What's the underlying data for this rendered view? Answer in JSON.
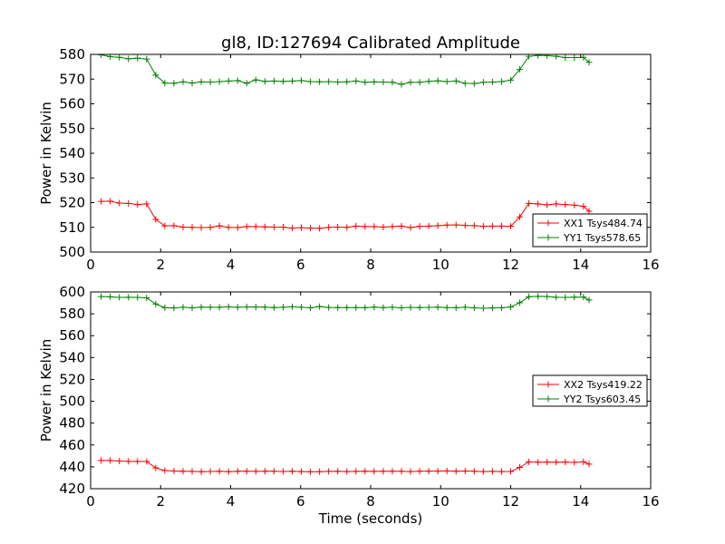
{
  "figure_title": "gl8, ID:127694 Calibrated Amplitude",
  "x_axis_label": "Time (seconds)",
  "colors": {
    "red": "#ff0000",
    "green": "#008000"
  },
  "chart_data": [
    {
      "type": "line",
      "title": "gl8, ID:127694 Calibrated Amplitude",
      "xlabel": "",
      "ylabel": "Power in Kelvin",
      "xlim": [
        0,
        16
      ],
      "ylim": [
        500,
        580
      ],
      "xticks": [
        0,
        2,
        4,
        6,
        8,
        10,
        12,
        14,
        16
      ],
      "yticks": [
        500,
        510,
        520,
        530,
        540,
        550,
        560,
        570,
        580
      ],
      "grid": false,
      "legend_position": "lower-right",
      "x": [
        0.3,
        0.56,
        0.82,
        1.08,
        1.34,
        1.6,
        1.86,
        2.12,
        2.38,
        2.64,
        2.9,
        3.16,
        3.42,
        3.68,
        3.94,
        4.2,
        4.46,
        4.72,
        4.98,
        5.24,
        5.5,
        5.76,
        6.02,
        6.28,
        6.54,
        6.8,
        7.06,
        7.32,
        7.58,
        7.84,
        8.1,
        8.36,
        8.62,
        8.88,
        9.14,
        9.4,
        9.66,
        9.92,
        10.18,
        10.44,
        10.7,
        10.96,
        11.22,
        11.48,
        11.74,
        12.0,
        12.26,
        12.52,
        12.78,
        13.04,
        13.3,
        13.56,
        13.82,
        14.08,
        14.24
      ],
      "series": [
        {
          "name": "XX1 Tsys484.74",
          "color": "#ff0000",
          "values": [
            520.5,
            520.6,
            519.8,
            519.7,
            519.2,
            519.5,
            513.2,
            510.6,
            510.7,
            510.1,
            510.0,
            509.9,
            510.0,
            510.6,
            510.0,
            509.9,
            510.3,
            510.3,
            510.2,
            510.1,
            510.1,
            509.7,
            509.9,
            509.7,
            509.6,
            510.0,
            510.1,
            510.0,
            510.5,
            510.3,
            510.3,
            510.1,
            510.3,
            510.5,
            509.9,
            510.4,
            510.5,
            510.7,
            510.9,
            511.0,
            510.8,
            510.7,
            510.4,
            510.5,
            510.5,
            510.4,
            514.2,
            519.7,
            519.5,
            519.1,
            519.5,
            519.2,
            519.0,
            518.5,
            516.5
          ]
        },
        {
          "name": "YY1 Tsys578.65",
          "color": "#008000",
          "values": [
            579.8,
            579.1,
            578.8,
            578.2,
            578.5,
            578.1,
            571.6,
            568.4,
            568.3,
            568.9,
            568.4,
            568.9,
            568.8,
            569.0,
            569.2,
            569.4,
            568.3,
            569.7,
            569.1,
            569.2,
            569.1,
            569.2,
            569.4,
            569.0,
            568.9,
            569.0,
            568.8,
            568.9,
            569.2,
            568.7,
            568.9,
            568.8,
            568.7,
            567.9,
            568.7,
            568.7,
            569.1,
            569.3,
            569.0,
            569.2,
            568.3,
            568.2,
            568.7,
            568.8,
            569.0,
            569.6,
            573.9,
            579.2,
            579.6,
            579.5,
            579.2,
            578.7,
            578.7,
            578.8,
            576.8
          ]
        }
      ]
    },
    {
      "type": "line",
      "title": "",
      "xlabel": "Time (seconds)",
      "ylabel": "Power in Kelvin",
      "xlim": [
        0,
        16
      ],
      "ylim": [
        420,
        600
      ],
      "xticks": [
        0,
        2,
        4,
        6,
        8,
        10,
        12,
        14,
        16
      ],
      "yticks": [
        420,
        440,
        460,
        480,
        500,
        520,
        540,
        560,
        580,
        600
      ],
      "grid": false,
      "legend_position": "center-right",
      "x": [
        0.3,
        0.56,
        0.82,
        1.08,
        1.34,
        1.6,
        1.86,
        2.12,
        2.38,
        2.64,
        2.9,
        3.16,
        3.42,
        3.68,
        3.94,
        4.2,
        4.46,
        4.72,
        4.98,
        5.24,
        5.5,
        5.76,
        6.02,
        6.28,
        6.54,
        6.8,
        7.06,
        7.32,
        7.58,
        7.84,
        8.1,
        8.36,
        8.62,
        8.88,
        9.14,
        9.4,
        9.66,
        9.92,
        10.18,
        10.44,
        10.7,
        10.96,
        11.22,
        11.48,
        11.74,
        12.0,
        12.26,
        12.52,
        12.78,
        13.04,
        13.3,
        13.56,
        13.82,
        14.08,
        14.24
      ],
      "series": [
        {
          "name": "XX2 Tsys419.22",
          "color": "#ff0000",
          "values": [
            445.8,
            445.8,
            445.3,
            445.0,
            445.0,
            444.9,
            439.0,
            436.6,
            436.2,
            436.0,
            435.9,
            435.6,
            435.8,
            436.0,
            435.6,
            436.0,
            436.0,
            435.9,
            436.0,
            436.0,
            435.8,
            436.0,
            435.7,
            435.5,
            435.6,
            435.9,
            436.0,
            435.7,
            435.9,
            436.0,
            435.9,
            436.0,
            436.0,
            436.0,
            435.7,
            436.0,
            436.1,
            436.1,
            436.3,
            436.0,
            436.2,
            436.0,
            435.7,
            435.9,
            435.7,
            435.8,
            439.5,
            444.6,
            444.3,
            444.4,
            444.3,
            444.4,
            444.1,
            444.6,
            442.5
          ]
        },
        {
          "name": "YY2 Tsys603.45",
          "color": "#008000",
          "values": [
            595.8,
            595.5,
            595.0,
            595.1,
            595.0,
            594.6,
            589.0,
            585.6,
            585.4,
            586.0,
            585.5,
            586.1,
            586.0,
            586.0,
            586.4,
            586.0,
            586.3,
            586.2,
            586.1,
            585.7,
            586.0,
            586.4,
            586.0,
            585.5,
            586.6,
            585.8,
            585.7,
            585.7,
            585.7,
            585.6,
            586.1,
            585.7,
            586.0,
            585.5,
            585.9,
            585.7,
            585.9,
            586.1,
            585.7,
            585.6,
            586.0,
            585.5,
            585.1,
            585.4,
            585.5,
            586.3,
            590.1,
            595.6,
            596.0,
            595.8,
            595.1,
            595.0,
            595.2,
            595.3,
            592.6
          ]
        }
      ]
    }
  ]
}
